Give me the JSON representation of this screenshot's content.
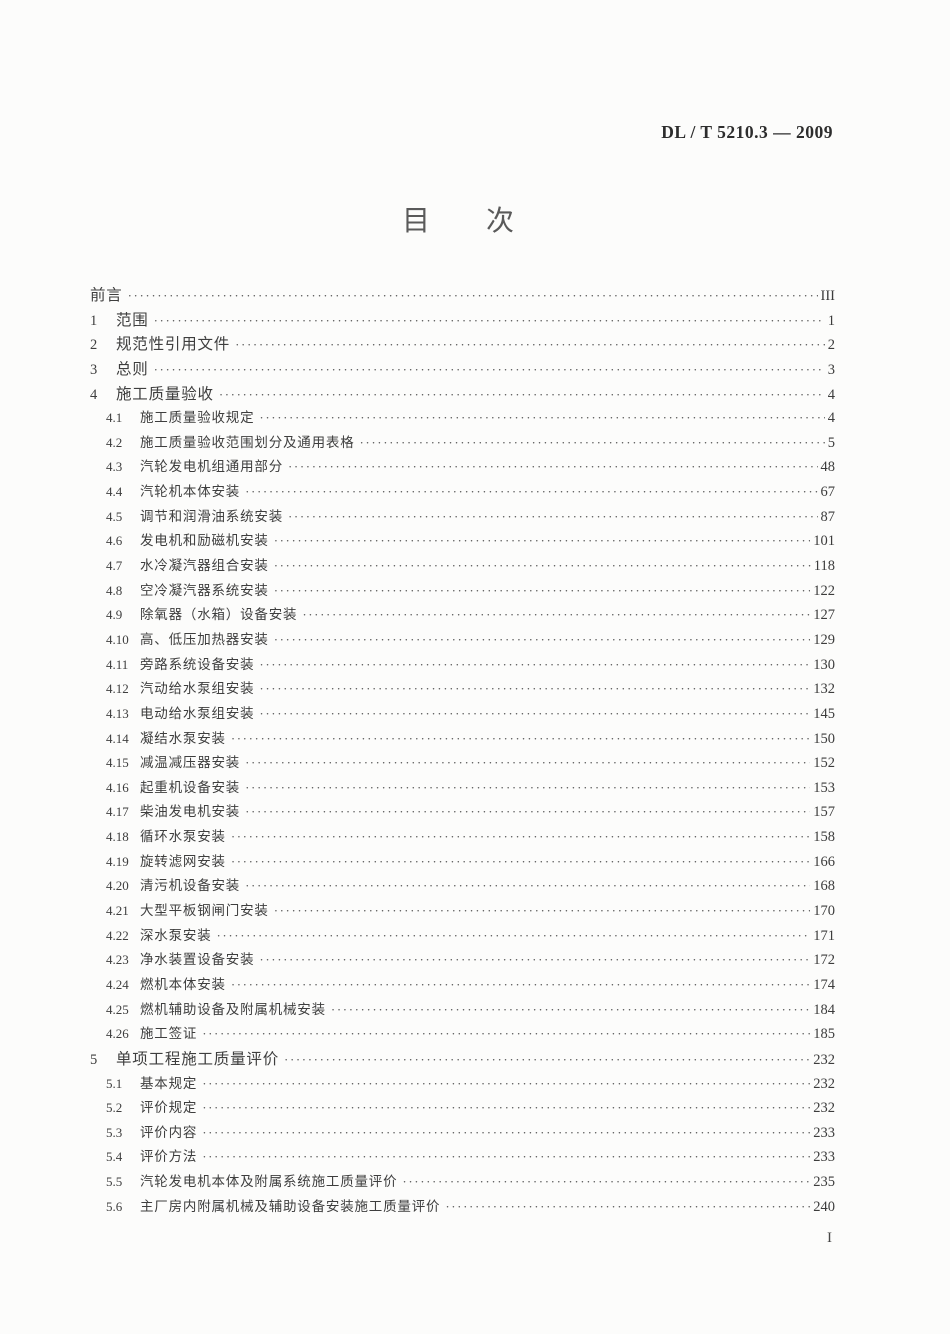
{
  "document": {
    "standard_number": "DL / T 5210.3 — 2009",
    "title": "目　　次",
    "page_number": "I"
  },
  "toc": {
    "entries": [
      {
        "num": "",
        "label": "前言",
        "page": "III",
        "level": 0
      },
      {
        "num": "1",
        "label": "范围",
        "page": "1",
        "level": 0
      },
      {
        "num": "2",
        "label": "规范性引用文件",
        "page": "2",
        "level": 0
      },
      {
        "num": "3",
        "label": "总则",
        "page": "3",
        "level": 0
      },
      {
        "num": "4",
        "label": "施工质量验收",
        "page": "4",
        "level": 0
      },
      {
        "num": "4.1",
        "label": "施工质量验收规定",
        "page": "4",
        "level": 1
      },
      {
        "num": "4.2",
        "label": "施工质量验收范围划分及通用表格",
        "page": "5",
        "level": 1
      },
      {
        "num": "4.3",
        "label": "汽轮发电机组通用部分",
        "page": "48",
        "level": 1
      },
      {
        "num": "4.4",
        "label": "汽轮机本体安装",
        "page": "67",
        "level": 1
      },
      {
        "num": "4.5",
        "label": "调节和润滑油系统安装",
        "page": "87",
        "level": 1
      },
      {
        "num": "4.6",
        "label": "发电机和励磁机安装",
        "page": "101",
        "level": 1
      },
      {
        "num": "4.7",
        "label": "水冷凝汽器组合安装",
        "page": "118",
        "level": 1
      },
      {
        "num": "4.8",
        "label": "空冷凝汽器系统安装",
        "page": "122",
        "level": 1
      },
      {
        "num": "4.9",
        "label": "除氧器（水箱）设备安装",
        "page": "127",
        "level": 1
      },
      {
        "num": "4.10",
        "label": "高、低压加热器安装",
        "page": "129",
        "level": 1
      },
      {
        "num": "4.11",
        "label": "旁路系统设备安装",
        "page": "130",
        "level": 1
      },
      {
        "num": "4.12",
        "label": "汽动给水泵组安装",
        "page": "132",
        "level": 1
      },
      {
        "num": "4.13",
        "label": "电动给水泵组安装",
        "page": "145",
        "level": 1
      },
      {
        "num": "4.14",
        "label": "凝结水泵安装",
        "page": "150",
        "level": 1
      },
      {
        "num": "4.15",
        "label": "减温减压器安装",
        "page": "152",
        "level": 1
      },
      {
        "num": "4.16",
        "label": "起重机设备安装",
        "page": "153",
        "level": 1
      },
      {
        "num": "4.17",
        "label": "柴油发电机安装",
        "page": "157",
        "level": 1
      },
      {
        "num": "4.18",
        "label": "循环水泵安装",
        "page": "158",
        "level": 1
      },
      {
        "num": "4.19",
        "label": "旋转滤网安装",
        "page": "166",
        "level": 1
      },
      {
        "num": "4.20",
        "label": "清污机设备安装",
        "page": "168",
        "level": 1
      },
      {
        "num": "4.21",
        "label": "大型平板钢闸门安装",
        "page": "170",
        "level": 1
      },
      {
        "num": "4.22",
        "label": "深水泵安装",
        "page": "171",
        "level": 1
      },
      {
        "num": "4.23",
        "label": "净水装置设备安装",
        "page": "172",
        "level": 1
      },
      {
        "num": "4.24",
        "label": "燃机本体安装",
        "page": "174",
        "level": 1
      },
      {
        "num": "4.25",
        "label": "燃机辅助设备及附属机械安装",
        "page": "184",
        "level": 1
      },
      {
        "num": "4.26",
        "label": "施工签证",
        "page": "185",
        "level": 1
      },
      {
        "num": "5",
        "label": "单项工程施工质量评价",
        "page": "232",
        "level": 0
      },
      {
        "num": "5.1",
        "label": "基本规定",
        "page": "232",
        "level": 1
      },
      {
        "num": "5.2",
        "label": "评价规定",
        "page": "232",
        "level": 1
      },
      {
        "num": "5.3",
        "label": "评价内容",
        "page": "233",
        "level": 1
      },
      {
        "num": "5.4",
        "label": "评价方法",
        "page": "233",
        "level": 1
      },
      {
        "num": "5.5",
        "label": "汽轮发电机本体及附属系统施工质量评价",
        "page": "235",
        "level": 1
      },
      {
        "num": "5.6",
        "label": "主厂房内附属机械及辅助设备安装施工质量评价",
        "page": "240",
        "level": 1
      }
    ]
  }
}
